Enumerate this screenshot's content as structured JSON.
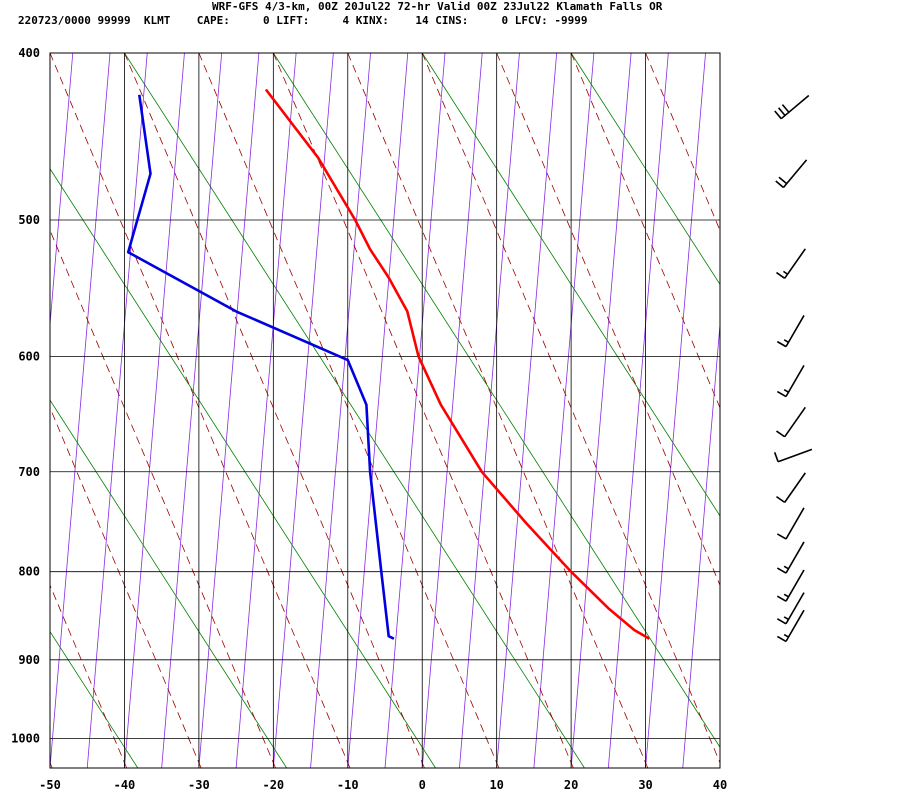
{
  "header": {
    "line1": "WRF-GFS 4/3-km, 00Z 20Jul22 72-hr Valid 00Z 23Jul22 Klamath Falls OR",
    "line2": "220723/0000 99999  KLMT    CAPE:     0 LIFT:     4 KINX:    14 CINS:     0 LFCV: -9999"
  },
  "chart_data": {
    "type": "skew-t",
    "title": "WRF-GFS 4/3-km, 00Z 20Jul22 72-hr Valid 00Z 23Jul22 Klamath Falls OR",
    "x_ticks": [
      -50,
      -40,
      -30,
      -20,
      -10,
      0,
      10,
      20,
      30,
      40
    ],
    "p_ticks": [
      400,
      500,
      600,
      700,
      800,
      900,
      1000
    ],
    "xlim": [
      -50,
      40
    ],
    "plim": [
      400,
      1040
    ],
    "grid": true,
    "colors": {
      "temperature": "#ff0000",
      "dewpoint": "#0000e0",
      "isotherm": "#8a2be2",
      "dry_adiabat": "#008000",
      "moist_adiabat": "#a00000"
    },
    "temperature": [
      {
        "p": 420,
        "t": -21.0
      },
      {
        "p": 460,
        "t": -14.0
      },
      {
        "p": 500,
        "t": -9.0
      },
      {
        "p": 520,
        "t": -7.0
      },
      {
        "p": 540,
        "t": -4.5
      },
      {
        "p": 565,
        "t": -2.0
      },
      {
        "p": 600,
        "t": -0.5
      },
      {
        "p": 640,
        "t": 2.5
      },
      {
        "p": 700,
        "t": 8.0
      },
      {
        "p": 750,
        "t": 14.0
      },
      {
        "p": 800,
        "t": 20.0
      },
      {
        "p": 840,
        "t": 25.0
      },
      {
        "p": 865,
        "t": 28.5
      },
      {
        "p": 875,
        "t": 30.5
      }
    ],
    "dewpoint": [
      {
        "p": 423,
        "t": -38.0
      },
      {
        "p": 470,
        "t": -36.5
      },
      {
        "p": 522,
        "t": -39.5
      },
      {
        "p": 565,
        "t": -25.0
      },
      {
        "p": 603,
        "t": -10.0
      },
      {
        "p": 640,
        "t": -7.5
      },
      {
        "p": 700,
        "t": -7.0
      },
      {
        "p": 800,
        "t": -5.5
      },
      {
        "p": 872,
        "t": -4.5
      },
      {
        "p": 875,
        "t": -3.8
      }
    ],
    "wind_barbs": [
      {
        "p": 430,
        "dir": 230,
        "spd": 30
      },
      {
        "p": 470,
        "dir": 220,
        "spd": 20
      },
      {
        "p": 530,
        "dir": 215,
        "spd": 15
      },
      {
        "p": 580,
        "dir": 210,
        "spd": 15
      },
      {
        "p": 620,
        "dir": 210,
        "spd": 15
      },
      {
        "p": 655,
        "dir": 215,
        "spd": 10
      },
      {
        "p": 685,
        "dir": 250,
        "spd": 10
      },
      {
        "p": 715,
        "dir": 215,
        "spd": 10
      },
      {
        "p": 750,
        "dir": 210,
        "spd": 10
      },
      {
        "p": 785,
        "dir": 210,
        "spd": 15
      },
      {
        "p": 815,
        "dir": 210,
        "spd": 15
      },
      {
        "p": 840,
        "dir": 210,
        "spd": 15
      },
      {
        "p": 860,
        "dir": 210,
        "spd": 15
      }
    ]
  }
}
